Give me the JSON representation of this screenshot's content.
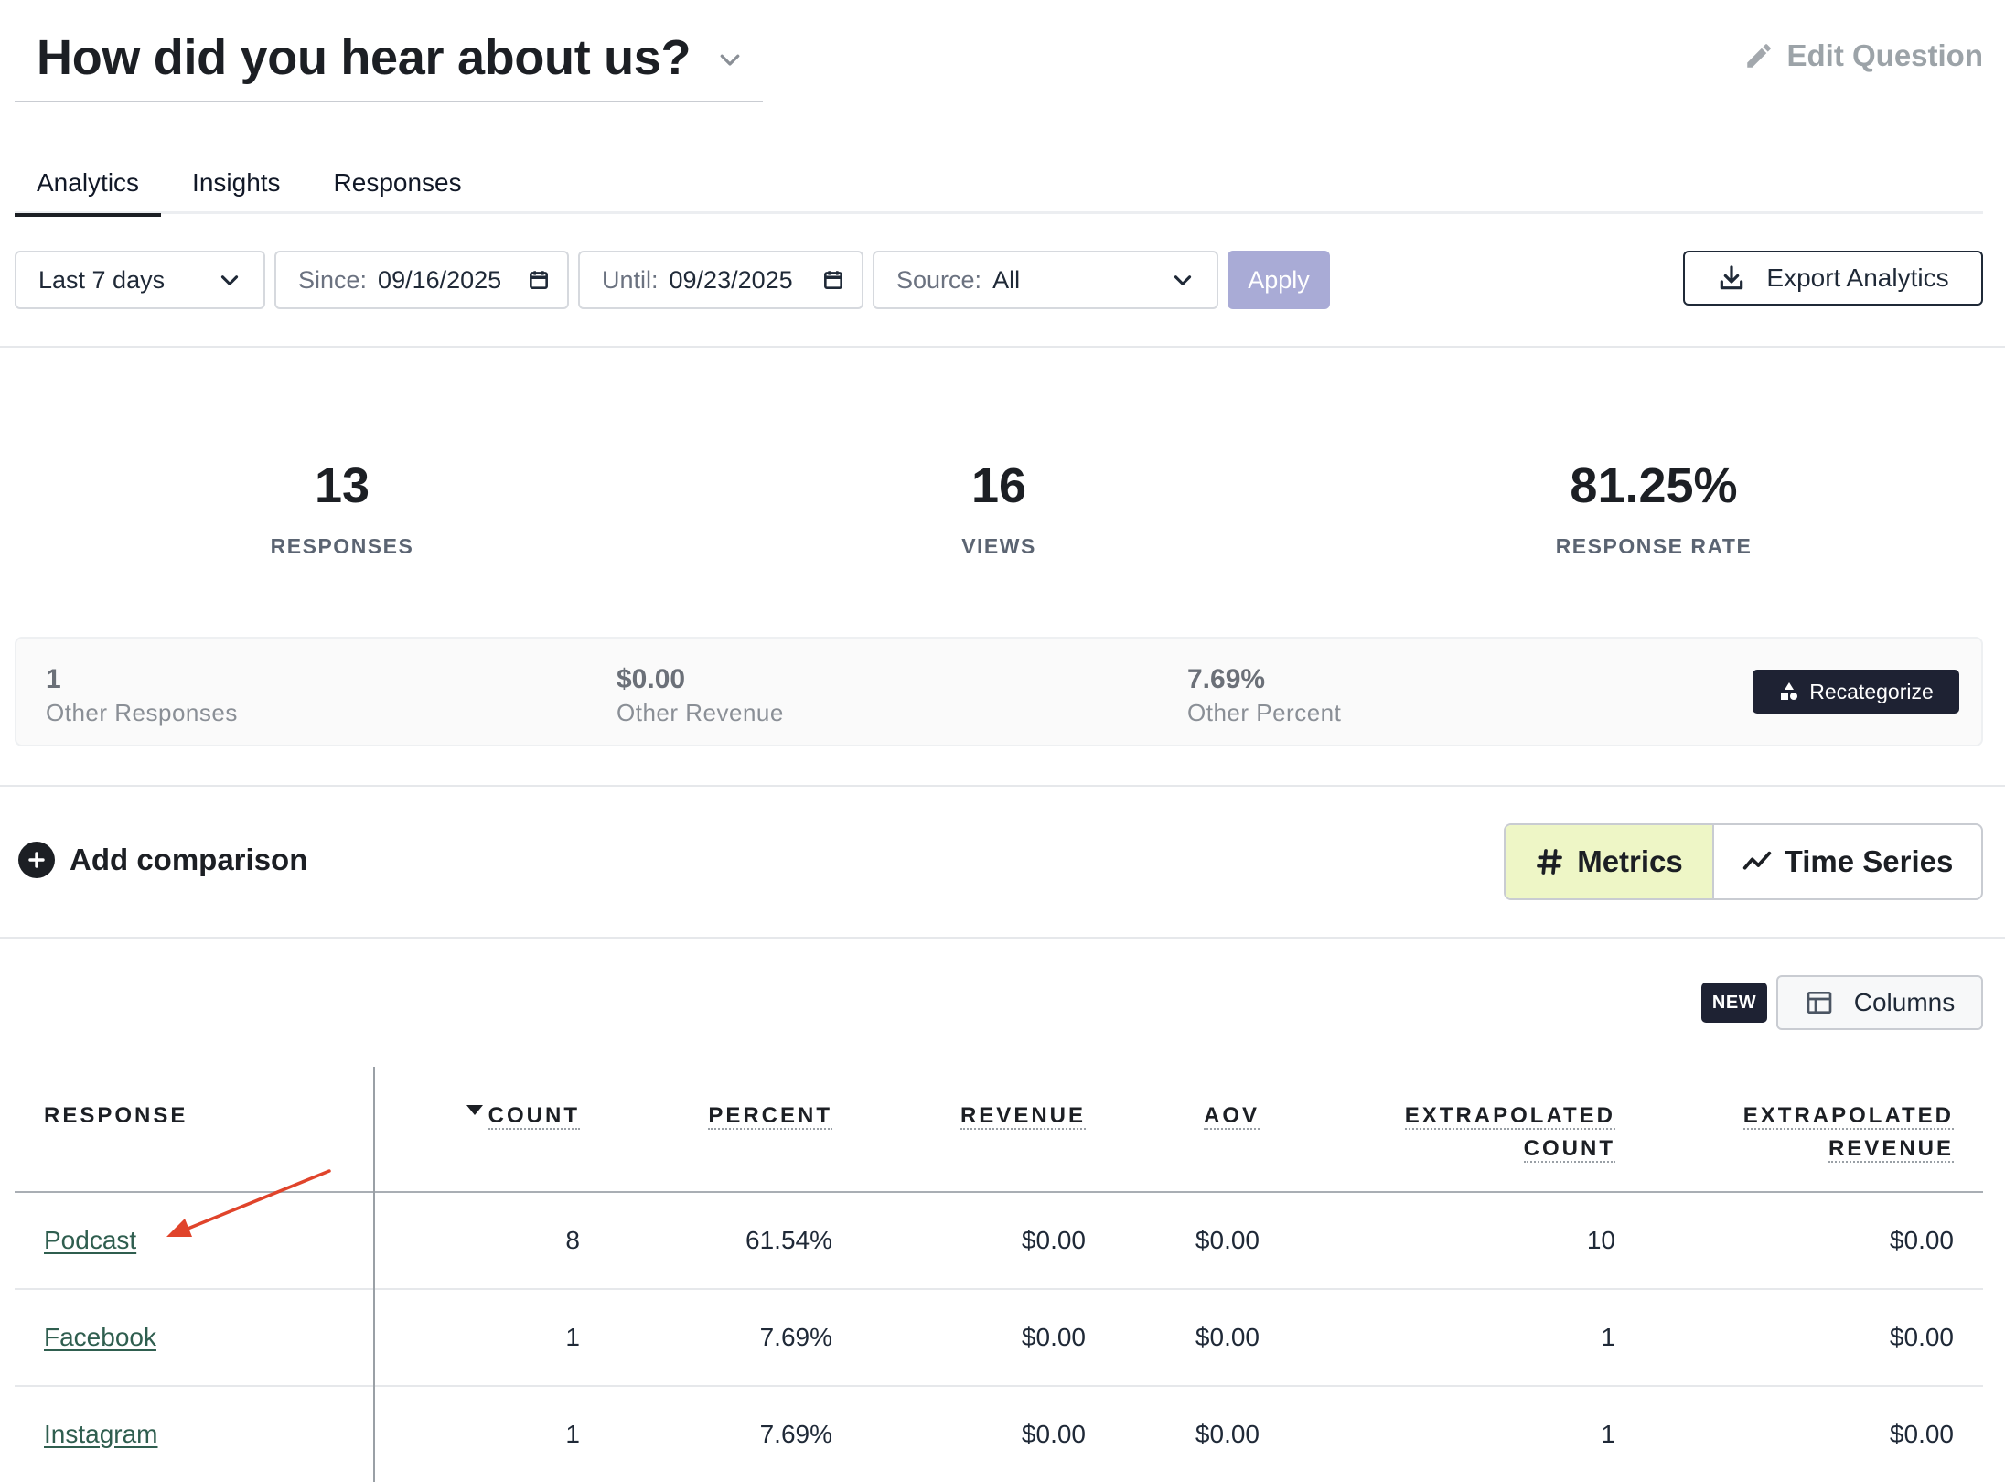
{
  "question": {
    "title": "How did you hear about us?",
    "edit_label": "Edit Question"
  },
  "tabs": [
    {
      "label": "Analytics",
      "active": true
    },
    {
      "label": "Insights",
      "active": false
    },
    {
      "label": "Responses",
      "active": false
    }
  ],
  "filters": {
    "range": "Last 7 days",
    "since_label": "Since:",
    "since_value": "09/16/2025",
    "until_label": "Until:",
    "until_value": "09/23/2025",
    "source_label": "Source:",
    "source_value": "All",
    "apply_label": "Apply",
    "export_label": "Export Analytics"
  },
  "stats": [
    {
      "value": "13",
      "label": "RESPONSES"
    },
    {
      "value": "16",
      "label": "VIEWS"
    },
    {
      "value": "81.25%",
      "label": "RESPONSE RATE"
    }
  ],
  "other": {
    "responses_value": "1",
    "responses_label": "Other Responses",
    "revenue_value": "$0.00",
    "revenue_label": "Other Revenue",
    "percent_value": "7.69%",
    "percent_label": "Other Percent",
    "recategorize_label": "Recategorize"
  },
  "comparison": {
    "add_label": "Add comparison",
    "metrics_label": "Metrics",
    "timeseries_label": "Time Series",
    "active_view": "Metrics"
  },
  "columns_control": {
    "badge": "NEW",
    "label": "Columns"
  },
  "table": {
    "headers": {
      "response": "RESPONSE",
      "count": "COUNT",
      "percent": "PERCENT",
      "revenue": "REVENUE",
      "aov": "AOV",
      "ext_count_1": "EXTRAPOLATED",
      "ext_count_2": "COUNT",
      "ext_revenue_1": "EXTRAPOLATED",
      "ext_revenue_2": "REVENUE"
    },
    "sort": {
      "column": "COUNT",
      "direction": "descending"
    },
    "rows": [
      {
        "response": "Podcast",
        "count": "8",
        "percent": "61.54%",
        "revenue": "$0.00",
        "aov": "$0.00",
        "ext_count": "10",
        "ext_revenue": "$0.00"
      },
      {
        "response": "Facebook",
        "count": "1",
        "percent": "7.69%",
        "revenue": "$0.00",
        "aov": "$0.00",
        "ext_count": "1",
        "ext_revenue": "$0.00"
      },
      {
        "response": "Instagram",
        "count": "1",
        "percent": "7.69%",
        "revenue": "$0.00",
        "aov": "$0.00",
        "ext_count": "1",
        "ext_revenue": "$0.00"
      }
    ]
  },
  "colors": {
    "accent_dark": "#1e2233",
    "apply_disabled": "#a9abd6",
    "metrics_active_bg": "#eef6c6",
    "link_green": "#2f5e4f",
    "annotation_arrow": "#e0442b"
  }
}
